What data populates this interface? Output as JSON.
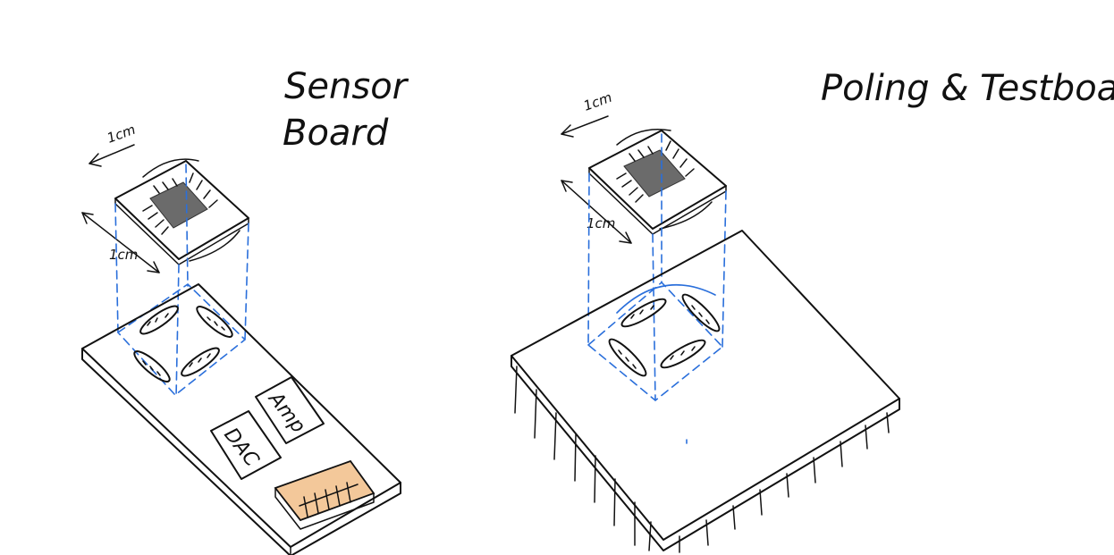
{
  "sensor_board": {
    "title_line1": "Sensor",
    "title_line2": "Board",
    "dim_top": "1cm",
    "dim_side": "1cm",
    "chip_label_dac": "DAC",
    "chip_label_amp": "Amp"
  },
  "test_board": {
    "title": "Poling & Testboard",
    "dim_top": "1cm",
    "dim_side": "1cm"
  },
  "colors": {
    "ink": "#111111",
    "guide_lines": "#2a6fdb",
    "die": "#6b6b6b",
    "connector": "#f3c89a"
  }
}
